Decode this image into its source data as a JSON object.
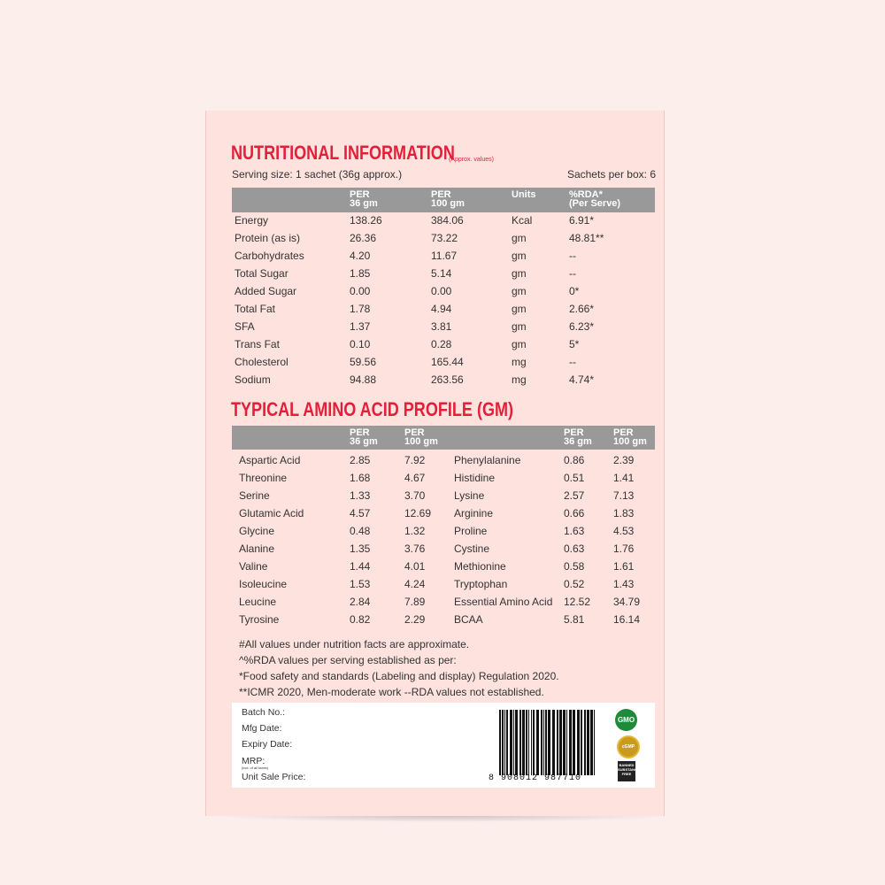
{
  "nutrition": {
    "title": "NUTRITIONAL INFORMATION",
    "note": "(Approx. values)",
    "serving": "Serving size: 1 sachet (36g approx.)",
    "sachets": "Sachets per box: 6",
    "headers": [
      "PER\n36 gm",
      "PER\n100 gm",
      "Units",
      "%RDA*\n(Per Serve)"
    ],
    "rows": [
      [
        "Energy",
        "138.26",
        "384.06",
        "Kcal",
        "6.91*"
      ],
      [
        "Protein (as is)",
        "26.36",
        "73.22",
        "gm",
        "48.81**"
      ],
      [
        "Carbohydrates",
        "4.20",
        "11.67",
        "gm",
        "--"
      ],
      [
        "Total Sugar",
        "1.85",
        "5.14",
        "gm",
        "--"
      ],
      [
        "Added Sugar",
        "0.00",
        "0.00",
        "gm",
        "0*"
      ],
      [
        "Total Fat",
        "1.78",
        "4.94",
        "gm",
        "2.66*"
      ],
      [
        "SFA",
        "1.37",
        "3.81",
        "gm",
        "6.23*"
      ],
      [
        "Trans Fat",
        "0.10",
        "0.28",
        "gm",
        "5*"
      ],
      [
        "Cholesterol",
        "59.56",
        "165.44",
        "mg",
        "--"
      ],
      [
        "Sodium",
        "94.88",
        "263.56",
        "mg",
        "4.74*"
      ]
    ]
  },
  "amino": {
    "title": "TYPICAL AMINO ACID PROFILE (GM)",
    "headers": [
      "PER\n36 gm",
      "PER\n100 gm",
      "PER\n36 gm",
      "PER\n100 gm"
    ],
    "rows": [
      [
        "Aspartic Acid",
        "2.85",
        "7.92",
        "Phenylalanine",
        "0.86",
        "2.39"
      ],
      [
        "Threonine",
        "1.68",
        "4.67",
        "Histidine",
        "0.51",
        "1.41"
      ],
      [
        "Serine",
        "1.33",
        "3.70",
        "Lysine",
        "2.57",
        "7.13"
      ],
      [
        "Glutamic Acid",
        "4.57",
        "12.69",
        "Arginine",
        "0.66",
        "1.83"
      ],
      [
        "Glycine",
        "0.48",
        "1.32",
        "Proline",
        "1.63",
        "4.53"
      ],
      [
        "Alanine",
        "1.35",
        "3.76",
        "Cystine",
        "0.63",
        "1.76"
      ],
      [
        "Valine",
        "1.44",
        "4.01",
        "Methionine",
        "0.58",
        "1.61"
      ],
      [
        "Isoleucine",
        "1.53",
        "4.24",
        "Tryptophan",
        "0.52",
        "1.43"
      ],
      [
        "Leucine",
        "2.84",
        "7.89",
        "Essential Amino Acid",
        "12.52",
        "34.79"
      ],
      [
        "Tyrosine",
        "0.82",
        "2.29",
        "BCAA",
        "5.81",
        "16.14"
      ]
    ]
  },
  "footnotes": [
    "#All values under nutrition facts are approximate.",
    "^%RDA values per serving established as per:",
    "*Food safety and standards (Labeling and display) Regulation 2020.",
    "**ICMR 2020, Men-moderate work  --RDA values not established."
  ],
  "label": {
    "batch": "Batch No.:",
    "mfg": "Mfg Date:",
    "expiry": "Expiry Date:",
    "mrp": "MRP:",
    "mrp_note": "(incl. of all taxes)",
    "usp": "Unit Sale Price:",
    "barcode": "8 908012 987710",
    "badges": [
      "GMO",
      "cGMP",
      "BANNED SUBSTANCE FREE"
    ]
  },
  "colors": {
    "accent": "#e41f3a",
    "panel": "#fde2de",
    "header": "#999999"
  }
}
